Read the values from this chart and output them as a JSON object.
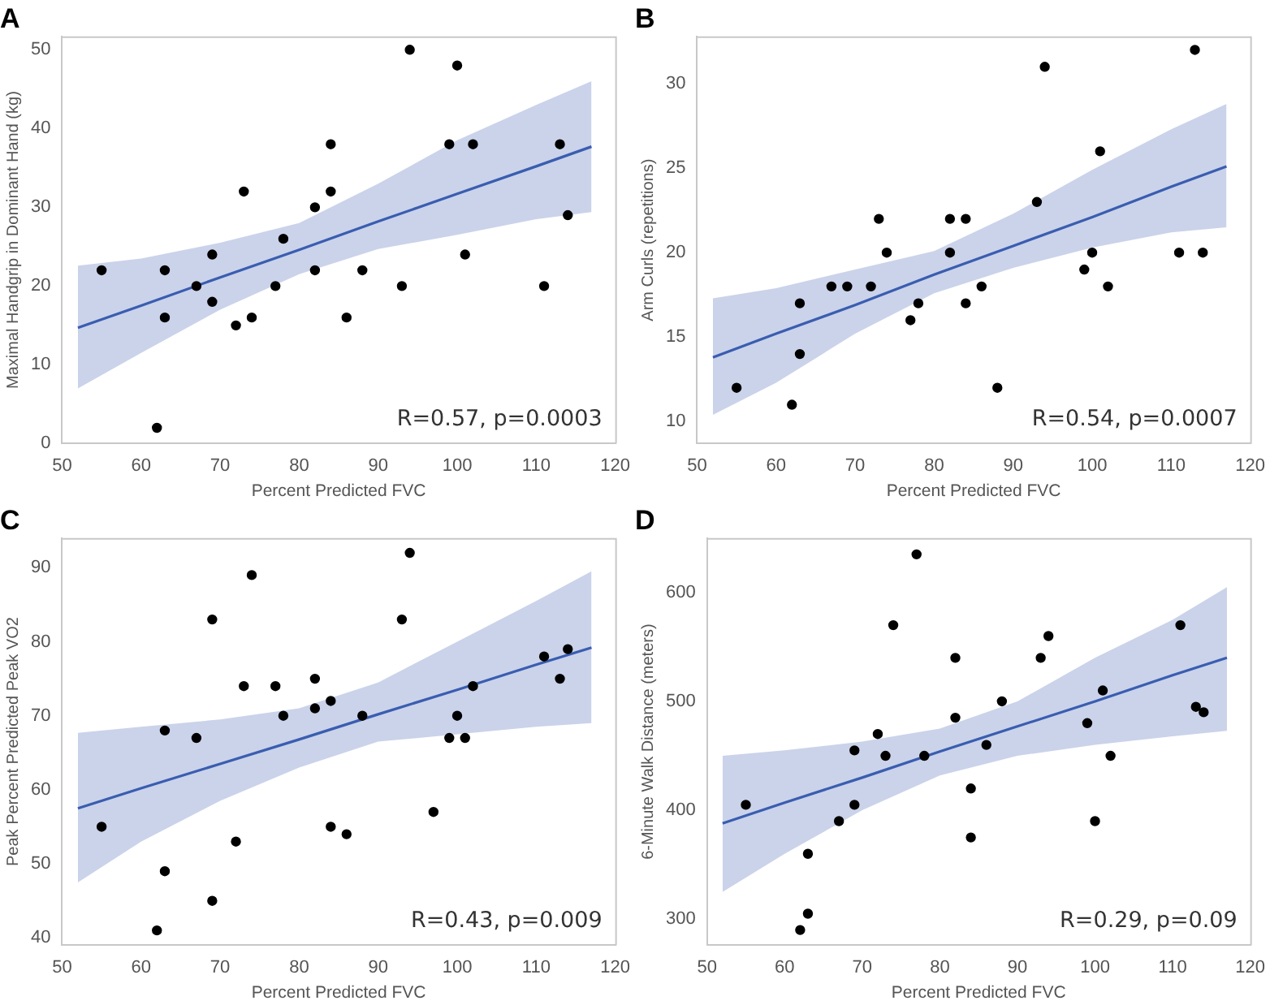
{
  "chart_data": [
    {
      "type": "scatter",
      "title": "A",
      "xlabel": "Percent Predicted FVC",
      "ylabel": "Maximal Handgrip in Dominant Hand (kg)",
      "xlim": [
        50,
        120
      ],
      "xticks": [
        50,
        60,
        70,
        80,
        90,
        100,
        110,
        120
      ],
      "ylim": [
        0,
        51.7
      ],
      "yticks": [
        0,
        10,
        20,
        30,
        40,
        50
      ],
      "grid": false,
      "legend": false,
      "marker": "circle",
      "annotations": [
        "R=0.57, p=0.0003"
      ],
      "series": [
        {
          "type": "line",
          "marker": "none",
          "color": "#3a5db0",
          "x": [
            52,
            60,
            70,
            80,
            90,
            100,
            110,
            117
          ],
          "values": [
            14.7,
            17.5,
            21.1,
            24.6,
            28.2,
            31.7,
            35.2,
            37.7
          ],
          "lower": [
            7,
            11.5,
            17,
            21.5,
            24.7,
            26.5,
            28.5,
            29.4
          ],
          "upper": [
            22.6,
            23.5,
            25.5,
            28,
            33,
            38.5,
            43,
            46
          ]
        },
        {
          "type": "scatter",
          "color": "#000000",
          "x": [
            55,
            62,
            63,
            63,
            67,
            69,
            69,
            72,
            73,
            74,
            77,
            78,
            82,
            82,
            84,
            84,
            86,
            88,
            93,
            94,
            99,
            100,
            101,
            102,
            111,
            113,
            114
          ],
          "values": [
            22,
            2,
            22,
            16,
            20,
            24,
            18,
            15,
            32,
            16,
            20,
            26,
            30,
            22,
            38,
            32,
            16,
            22,
            20,
            50,
            38,
            48,
            24,
            38,
            20,
            38,
            29
          ]
        }
      ]
    },
    {
      "type": "scatter",
      "title": "B",
      "xlabel": "Percent Predicted FVC",
      "ylabel": "Arm Curls (repetitions)",
      "xlim": [
        50,
        120
      ],
      "xticks": [
        50,
        60,
        70,
        80,
        90,
        100,
        110,
        120
      ],
      "ylim": [
        8.7,
        32.8
      ],
      "yticks": [
        10,
        15,
        20,
        25,
        30
      ],
      "grid": false,
      "legend": false,
      "marker": "circle",
      "annotations": [
        "R=0.54, p=0.0007"
      ],
      "series": [
        {
          "type": "line",
          "marker": "none",
          "color": "#3a5db0",
          "x": [
            52,
            60,
            70,
            80,
            90,
            100,
            110,
            117
          ],
          "values": [
            13.8,
            15.2,
            16.9,
            18.7,
            20.4,
            22.1,
            23.9,
            25.1
          ],
          "lower": [
            10.4,
            12.3,
            15.2,
            17.6,
            19.1,
            20.3,
            21.2,
            21.5
          ],
          "upper": [
            17.3,
            17.9,
            19,
            20.1,
            22.3,
            24.9,
            27.3,
            28.8
          ]
        },
        {
          "type": "scatter",
          "color": "#000000",
          "x": [
            55,
            62,
            63,
            63,
            67,
            69,
            72,
            73,
            74,
            77,
            78,
            82,
            82,
            84,
            84,
            86,
            88,
            93,
            94,
            99,
            100,
            101,
            102,
            111,
            113,
            114
          ],
          "values": [
            12,
            11,
            17,
            14,
            18,
            18,
            18,
            22,
            20,
            16,
            17,
            22,
            20,
            22,
            17,
            18,
            12,
            23,
            31,
            19,
            20,
            26,
            18,
            20,
            32,
            20
          ]
        }
      ]
    },
    {
      "type": "scatter",
      "title": "C",
      "xlabel": "Percent Predicted FVC",
      "ylabel": "Peak Percent Predicted Peak VO2",
      "xlim": [
        50,
        120
      ],
      "xticks": [
        50,
        60,
        70,
        80,
        90,
        100,
        110,
        120
      ],
      "ylim": [
        39,
        94
      ],
      "yticks": [
        40,
        50,
        60,
        70,
        80,
        90
      ],
      "grid": false,
      "legend": false,
      "marker": "circle",
      "annotations": [
        "R=0.43, p=0.009"
      ],
      "series": [
        {
          "type": "line",
          "marker": "none",
          "color": "#3a5db0",
          "x": [
            52,
            60,
            70,
            80,
            90,
            100,
            110,
            117
          ],
          "values": [
            57.5,
            60.2,
            63.5,
            66.8,
            70.2,
            73.5,
            76.9,
            79.2
          ],
          "lower": [
            47.5,
            53,
            58.5,
            63,
            66.5,
            67.5,
            68.5,
            69
          ],
          "upper": [
            67.7,
            68.5,
            69.5,
            71,
            74.5,
            80,
            85.5,
            89.5
          ]
        },
        {
          "type": "scatter",
          "color": "#000000",
          "x": [
            55,
            62,
            63,
            63,
            67,
            69,
            69,
            72,
            73,
            74,
            77,
            78,
            82,
            82,
            84,
            84,
            86,
            88,
            93,
            94,
            97,
            99,
            100,
            101,
            102,
            111,
            113,
            114
          ],
          "values": [
            55,
            41,
            68,
            49,
            67,
            83,
            45,
            53,
            74,
            89,
            74,
            70,
            75,
            71,
            72,
            55,
            54,
            70,
            83,
            92,
            57,
            67,
            70,
            67,
            74,
            78,
            75,
            79
          ]
        }
      ]
    },
    {
      "type": "scatter",
      "title": "D",
      "xlabel": "Percent Predicted FVC",
      "ylabel": "6-Minute Walk Distance (meters)",
      "xlim": [
        50,
        120
      ],
      "xticks": [
        50,
        60,
        70,
        80,
        90,
        100,
        110,
        120
      ],
      "ylim": [
        276,
        650
      ],
      "yticks": [
        300,
        400,
        500,
        600
      ],
      "grid": false,
      "legend": false,
      "marker": "circle",
      "annotations": [
        "R=0.29, p=0.09"
      ],
      "series": [
        {
          "type": "line",
          "marker": "none",
          "color": "#3a5db0",
          "x": [
            52,
            60,
            70,
            80,
            90,
            100,
            110,
            117
          ],
          "values": [
            388,
            407,
            430,
            454,
            477,
            500,
            524,
            540
          ],
          "lower": [
            325,
            360,
            400,
            432,
            450,
            460,
            468,
            473
          ],
          "upper": [
            450,
            455,
            463,
            475,
            500,
            540,
            575,
            605
          ]
        },
        {
          "type": "scatter",
          "color": "#000000",
          "x": [
            55,
            62,
            63,
            63,
            67,
            69,
            69,
            72,
            73,
            74,
            77,
            78,
            82,
            82,
            84,
            84,
            86,
            88,
            93,
            94,
            99,
            100,
            101,
            102,
            111,
            113,
            114
          ],
          "values": [
            405,
            290,
            360,
            305,
            390,
            455,
            405,
            470,
            450,
            570,
            635,
            450,
            540,
            485,
            420,
            375,
            460,
            500,
            540,
            560,
            480,
            390,
            510,
            450,
            570,
            495,
            490
          ]
        }
      ]
    }
  ]
}
